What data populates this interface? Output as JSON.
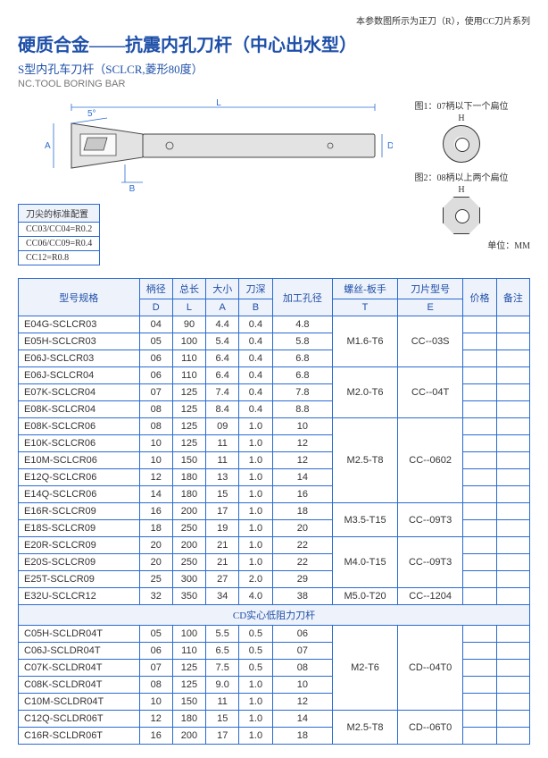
{
  "topnote": "本参数图所示为正刀（R），使用CC刀片系列",
  "title_main": "硬质合金——抗震内孔刀杆（中心出水型）",
  "title_sub": "S型内孔车刀杆（SCLCR,菱形80度）",
  "title_en": "NC.TOOL BORING BAR",
  "diag": {
    "L": "L",
    "A": "A",
    "B": "B",
    "D": "D",
    "angle": "5°"
  },
  "side": {
    "cap1": "图1：07柄以下一个扁位",
    "H": "H",
    "cap2": "图2：08柄以上两个扁位",
    "unit": "单位：MM"
  },
  "cfg": {
    "hdr": "刀尖的标准配置",
    "r1": "CC03/CC04=R0.2",
    "r2": "CC06/CC09=R0.4",
    "r3": "CC12=R0.8"
  },
  "head": {
    "model": "型号规格",
    "shank": "柄径",
    "len": "总长",
    "size": "大小",
    "depth": "刀深",
    "bore": "加工孔径",
    "screw": "螺丝-板手",
    "insert": "刀片型号",
    "price": "价格",
    "remark": "备注",
    "D": "D",
    "L": "L",
    "A": "A",
    "B": "B",
    "T": "T",
    "E": "E"
  },
  "groups": [
    {
      "T": "M1.6-T6",
      "E": "CC--03S",
      "rows": [
        {
          "m": "E04G-SCLCR03",
          "D": "04",
          "L": "90",
          "A": "4.4",
          "B": "0.4",
          "bore": "4.8"
        },
        {
          "m": "E05H-SCLCR03",
          "D": "05",
          "L": "100",
          "A": "5.4",
          "B": "0.4",
          "bore": "5.8"
        },
        {
          "m": "E06J-SCLCR03",
          "D": "06",
          "L": "110",
          "A": "6.4",
          "B": "0.4",
          "bore": "6.8"
        }
      ]
    },
    {
      "T": "M2.0-T6",
      "E": "CC--04T",
      "rows": [
        {
          "m": "E06J-SCLCR04",
          "D": "06",
          "L": "110",
          "A": "6.4",
          "B": "0.4",
          "bore": "6.8"
        },
        {
          "m": "E07K-SCLCR04",
          "D": "07",
          "L": "125",
          "A": "7.4",
          "B": "0.4",
          "bore": "7.8"
        },
        {
          "m": "E08K-SCLCR04",
          "D": "08",
          "L": "125",
          "A": "8.4",
          "B": "0.4",
          "bore": "8.8"
        }
      ]
    },
    {
      "T": "M2.5-T8",
      "E": "CC--0602",
      "rows": [
        {
          "m": "E08K-SCLCR06",
          "D": "08",
          "L": "125",
          "A": "09",
          "B": "1.0",
          "bore": "10"
        },
        {
          "m": "E10K-SCLCR06",
          "D": "10",
          "L": "125",
          "A": "11",
          "B": "1.0",
          "bore": "12"
        },
        {
          "m": "E10M-SCLCR06",
          "D": "10",
          "L": "150",
          "A": "11",
          "B": "1.0",
          "bore": "12"
        },
        {
          "m": "E12Q-SCLCR06",
          "D": "12",
          "L": "180",
          "A": "13",
          "B": "1.0",
          "bore": "14"
        },
        {
          "m": "E14Q-SCLCR06",
          "D": "14",
          "L": "180",
          "A": "15",
          "B": "1.0",
          "bore": "16"
        }
      ]
    },
    {
      "T": "M3.5-T15",
      "E": "CC--09T3",
      "rows": [
        {
          "m": "E16R-SCLCR09",
          "D": "16",
          "L": "200",
          "A": "17",
          "B": "1.0",
          "bore": "18"
        },
        {
          "m": "E18S-SCLCR09",
          "D": "18",
          "L": "250",
          "A": "19",
          "B": "1.0",
          "bore": "20"
        }
      ]
    },
    {
      "T": "M4.0-T15",
      "E": "CC--09T3",
      "rows": [
        {
          "m": "E20R-SCLCR09",
          "D": "20",
          "L": "200",
          "A": "21",
          "B": "1.0",
          "bore": "22"
        },
        {
          "m": "E20S-SCLCR09",
          "D": "20",
          "L": "250",
          "A": "21",
          "B": "1.0",
          "bore": "22"
        },
        {
          "m": "E25T-SCLCR09",
          "D": "25",
          "L": "300",
          "A": "27",
          "B": "2.0",
          "bore": "29"
        }
      ]
    },
    {
      "T": "M5.0-T20",
      "E": "CC--1204",
      "rows": [
        {
          "m": "E32U-SCLCR12",
          "D": "32",
          "L": "350",
          "A": "34",
          "B": "4.0",
          "bore": "38"
        }
      ]
    }
  ],
  "section2": "CD实心低阻力刀杆",
  "groups2": [
    {
      "T": "M2-T6",
      "E": "CD--04T0",
      "rows": [
        {
          "m": "C05H-SCLDR04T",
          "D": "05",
          "L": "100",
          "A": "5.5",
          "B": "0.5",
          "bore": "06"
        },
        {
          "m": "C06J-SCLDR04T",
          "D": "06",
          "L": "110",
          "A": "6.5",
          "B": "0.5",
          "bore": "07"
        },
        {
          "m": "C07K-SCLDR04T",
          "D": "07",
          "L": "125",
          "A": "7.5",
          "B": "0.5",
          "bore": "08"
        },
        {
          "m": "C08K-SCLDR04T",
          "D": "08",
          "L": "125",
          "A": "9.0",
          "B": "1.0",
          "bore": "10"
        },
        {
          "m": "C10M-SCLDR04T",
          "D": "10",
          "L": "150",
          "A": "11",
          "B": "1.0",
          "bore": "12"
        }
      ]
    },
    {
      "T": "M2.5-T8",
      "E": "CD--06T0",
      "rows": [
        {
          "m": "C12Q-SCLDR06T",
          "D": "12",
          "L": "180",
          "A": "15",
          "B": "1.0",
          "bore": "14"
        },
        {
          "m": "C16R-SCLDR06T",
          "D": "16",
          "L": "200",
          "A": "17",
          "B": "1.0",
          "bore": "18"
        }
      ]
    }
  ]
}
